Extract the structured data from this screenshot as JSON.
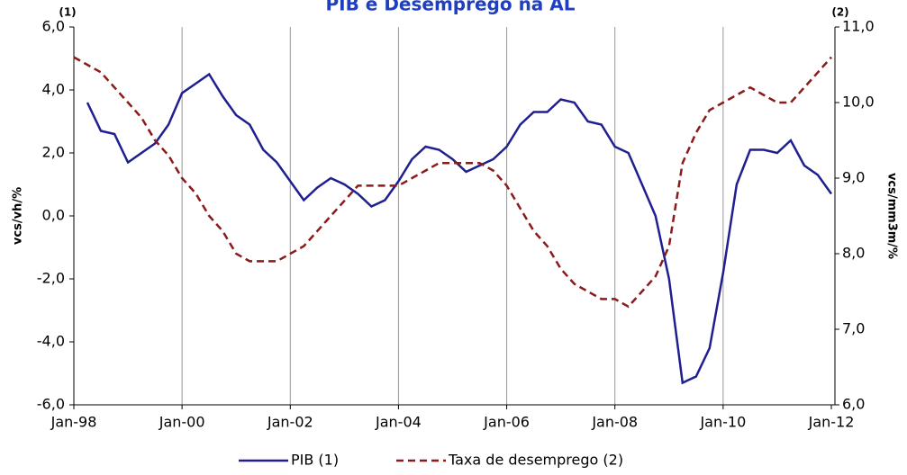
{
  "chart_data": {
    "type": "line",
    "title": "PIB e Desemprego na AL",
    "y_label": "vcs/vh/%",
    "y2_label": "vcs/mm3m/%",
    "y_note": "(1)",
    "y2_note": "(2)",
    "categories": [
      "Jan-98",
      null,
      null,
      null,
      null,
      null,
      null,
      null,
      "Jan-00",
      null,
      null,
      null,
      null,
      null,
      null,
      null,
      "Jan-02",
      null,
      null,
      null,
      null,
      null,
      null,
      null,
      "Jan-04",
      null,
      null,
      null,
      null,
      null,
      null,
      null,
      "Jan-06",
      null,
      null,
      null,
      null,
      null,
      null,
      null,
      "Jan-08",
      null,
      null,
      null,
      null,
      null,
      null,
      null,
      "Jan-10",
      null,
      null,
      null,
      null,
      null,
      null,
      null,
      "Jan-12"
    ],
    "series": [
      {
        "name": "PIB (1)",
        "color": "#1f1f8f",
        "dash": false,
        "axis": "y",
        "values": [
          null,
          3.6,
          2.7,
          2.6,
          1.7,
          2.0,
          2.3,
          2.9,
          3.9,
          4.2,
          4.5,
          3.8,
          3.2,
          2.9,
          2.1,
          1.7,
          1.1,
          0.5,
          0.9,
          1.2,
          1.0,
          0.7,
          0.3,
          0.5,
          1.1,
          1.8,
          2.2,
          2.1,
          1.8,
          1.4,
          1.6,
          1.8,
          2.2,
          2.9,
          3.3,
          3.3,
          3.7,
          3.6,
          3.0,
          2.9,
          2.2,
          2.0,
          1.0,
          0.0,
          -2.0,
          -5.3,
          -5.1,
          -4.2,
          -1.8,
          1.0,
          2.1,
          2.1,
          2.0,
          2.4,
          1.6,
          1.3,
          0.7
        ]
      },
      {
        "name": "Taxa de desemprego (2)",
        "color": "#8b1a1a",
        "dash": true,
        "axis": "y2",
        "values": [
          10.6,
          10.5,
          10.4,
          10.2,
          10.0,
          9.8,
          9.5,
          9.3,
          9.0,
          8.8,
          8.5,
          8.3,
          8.0,
          7.9,
          7.9,
          7.9,
          8.0,
          8.1,
          8.3,
          8.5,
          8.7,
          8.9,
          8.9,
          8.9,
          8.9,
          9.0,
          9.1,
          9.2,
          9.2,
          9.2,
          9.2,
          9.1,
          8.9,
          8.6,
          8.3,
          8.1,
          7.8,
          7.6,
          7.5,
          7.4,
          7.4,
          7.3,
          7.5,
          7.7,
          8.1,
          9.2,
          9.6,
          9.9,
          10.0,
          10.1,
          10.2,
          10.1,
          10.0,
          10.0,
          10.2,
          10.4,
          10.6
        ]
      }
    ],
    "ylim": [
      -6,
      6
    ],
    "yticks": [
      {
        "value": -6,
        "label": "-6,0"
      },
      {
        "value": -4,
        "label": "-4,0"
      },
      {
        "value": -2,
        "label": "-2,0"
      },
      {
        "value": 0,
        "label": "0,0"
      },
      {
        "value": 2,
        "label": "2,0"
      },
      {
        "value": 4,
        "label": "4,0"
      },
      {
        "value": 6,
        "label": "6,0"
      }
    ],
    "y2lim": [
      6,
      11
    ],
    "y2ticks": [
      {
        "value": 6,
        "label": "6,0"
      },
      {
        "value": 7,
        "label": "7,0"
      },
      {
        "value": 8,
        "label": "8,0"
      },
      {
        "value": 9,
        "label": "9,0"
      },
      {
        "value": 10,
        "label": "10,0"
      },
      {
        "value": 11,
        "label": "11,0"
      }
    ],
    "grid": true,
    "legend": "bottom"
  }
}
